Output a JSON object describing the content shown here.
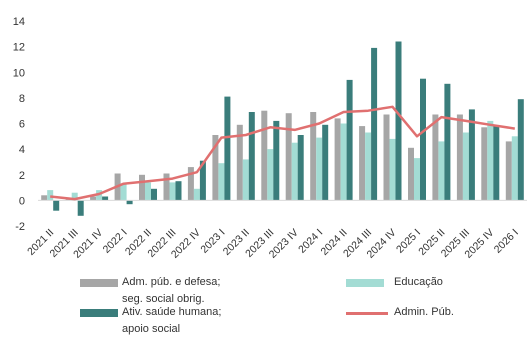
{
  "chart_data": {
    "type": "bar",
    "categories": [
      "2021 II",
      "2021 III",
      "2021 IV",
      "2022 I",
      "2022 II",
      "2022 III",
      "2022 IV",
      "2023 I",
      "2023 II",
      "2023 III",
      "2023 IV",
      "2024 I",
      "2024 II",
      "2024 III",
      "2024 IV",
      "2025 I",
      "2025 II",
      "2025 III",
      "2025 IV",
      "2026 I"
    ],
    "ylim": [
      -2,
      14
    ],
    "yticks": [
      -2,
      0,
      2,
      4,
      6,
      8,
      10,
      12,
      14
    ],
    "grid": false,
    "legend_position": "bottom",
    "series": [
      {
        "name": "Adm. púb. e defesa; seg. social obrig.",
        "kind": "bar",
        "color": "#a6a6a6",
        "values": [
          0.4,
          0.1,
          0.3,
          2.1,
          2.0,
          2.1,
          2.6,
          5.1,
          5.9,
          7.0,
          6.8,
          6.9,
          6.4,
          5.8,
          6.7,
          4.1,
          6.7,
          6.7,
          5.7,
          4.6
        ]
      },
      {
        "name": "Educação",
        "kind": "bar",
        "color": "#a3dcd4",
        "values": [
          0.8,
          0.6,
          0.8,
          1.3,
          1.4,
          1.4,
          0.9,
          2.9,
          3.2,
          4.0,
          4.5,
          4.9,
          6.0,
          5.3,
          4.8,
          3.3,
          4.6,
          5.3,
          6.2,
          5.0
        ]
      },
      {
        "name": "Ativ. saúde humana; apoio social",
        "kind": "bar",
        "color": "#3a7d7b",
        "values": [
          -0.8,
          -1.2,
          0.3,
          -0.3,
          0.9,
          1.5,
          3.1,
          8.1,
          6.9,
          6.2,
          5.1,
          5.9,
          9.4,
          11.9,
          12.4,
          9.5,
          9.1,
          7.1,
          5.8,
          7.9
        ]
      },
      {
        "name": "Admin. Púb.",
        "kind": "line",
        "color": "#e07070",
        "values": [
          0.3,
          0.1,
          0.5,
          1.3,
          1.5,
          1.7,
          2.2,
          4.9,
          5.1,
          5.7,
          5.5,
          6.0,
          6.9,
          7.0,
          7.3,
          5.0,
          6.5,
          6.2,
          5.9,
          5.6
        ]
      }
    ]
  },
  "legend": {
    "adm_line1": "Adm. púb. e defesa;",
    "adm_line2": "seg. social obrig.",
    "edu": "Educação",
    "saude_line1": "Ativ. saúde humana;",
    "saude_line2": "apoio social",
    "admin": "Admin. Púb."
  }
}
